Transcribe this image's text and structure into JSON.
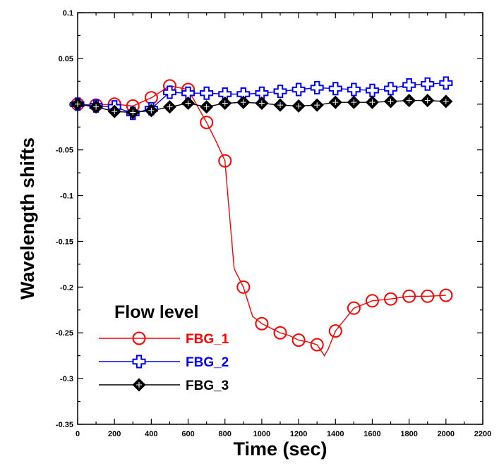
{
  "chart_data": {
    "type": "line",
    "title": "",
    "xlabel": "Time (sec)",
    "ylabel": "Wavelength shifts",
    "xlim": [
      0,
      2200
    ],
    "ylim": [
      -0.35,
      0.1
    ],
    "xticks": [
      0,
      200,
      400,
      600,
      800,
      1000,
      1200,
      1400,
      1600,
      1800,
      2000,
      2200
    ],
    "yticks": [
      0.1,
      0.05,
      0,
      -0.05,
      -0.1,
      -0.15,
      -0.2,
      -0.25,
      -0.3,
      -0.35
    ],
    "xtick_labels": [
      "0",
      "200",
      "400",
      "600",
      "800",
      "1000",
      "1200",
      "1400",
      "1600",
      "1800",
      "2000",
      "2200"
    ],
    "ytick_labels": [
      "0.1",
      "0.05",
      "0",
      "-0.05",
      "-0.1",
      "-0.15",
      "-0.2",
      "-0.25",
      "-0.3",
      "-0.35"
    ],
    "grid": false,
    "legend": {
      "title": "Flow level",
      "placement": "bottom-left"
    },
    "series": [
      {
        "name": "FBG_1",
        "color": "#ff0000",
        "marker": "circle",
        "x": [
          0,
          100,
          200,
          300,
          400,
          500,
          600,
          700,
          750,
          800,
          820,
          850,
          900,
          950,
          1000,
          1050,
          1100,
          1150,
          1200,
          1250,
          1300,
          1340,
          1360,
          1400,
          1500,
          1600,
          1700,
          1800,
          1900,
          2000
        ],
        "y": [
          0,
          -0.001,
          0,
          -0.002,
          0.007,
          0.02,
          0.016,
          -0.02,
          -0.04,
          -0.062,
          -0.11,
          -0.18,
          -0.2,
          -0.232,
          -0.24,
          -0.245,
          -0.25,
          -0.253,
          -0.258,
          -0.26,
          -0.263,
          -0.275,
          -0.268,
          -0.248,
          -0.223,
          -0.215,
          -0.213,
          -0.21,
          -0.21,
          -0.209
        ],
        "marker_x": [
          0,
          100,
          200,
          300,
          400,
          500,
          600,
          700,
          800,
          900,
          1000,
          1100,
          1200,
          1300,
          1400,
          1500,
          1600,
          1700,
          1800,
          1900,
          2000
        ],
        "marker_y": [
          0,
          -0.001,
          0,
          -0.002,
          0.007,
          0.02,
          0.016,
          -0.02,
          -0.062,
          -0.2,
          -0.24,
          -0.25,
          -0.258,
          -0.263,
          -0.248,
          -0.223,
          -0.215,
          -0.213,
          -0.21,
          -0.21,
          -0.209
        ]
      },
      {
        "name": "FBG_2",
        "color": "#0000ff",
        "marker": "plus",
        "x": [
          0,
          100,
          200,
          300,
          400,
          500,
          600,
          700,
          800,
          900,
          1000,
          1100,
          1200,
          1300,
          1400,
          1500,
          1600,
          1700,
          1800,
          1900,
          2000
        ],
        "y": [
          0,
          -0.002,
          -0.003,
          -0.01,
          -0.005,
          0.013,
          0.012,
          0.012,
          0.011,
          0.011,
          0.012,
          0.014,
          0.016,
          0.018,
          0.017,
          0.016,
          0.015,
          0.017,
          0.021,
          0.022,
          0.023
        ]
      },
      {
        "name": "FBG_3",
        "color": "#000000",
        "marker": "diamond",
        "x": [
          0,
          100,
          200,
          300,
          400,
          500,
          600,
          700,
          800,
          900,
          1000,
          1100,
          1200,
          1300,
          1400,
          1500,
          1600,
          1700,
          1800,
          1900,
          2000
        ],
        "y": [
          0,
          -0.003,
          -0.008,
          -0.009,
          -0.007,
          -0.003,
          0.001,
          -0.003,
          0.001,
          0.002,
          0.001,
          -0.001,
          -0.002,
          -0.001,
          0.002,
          0.002,
          0.002,
          0.003,
          0.004,
          0.004,
          0.003
        ]
      }
    ]
  }
}
